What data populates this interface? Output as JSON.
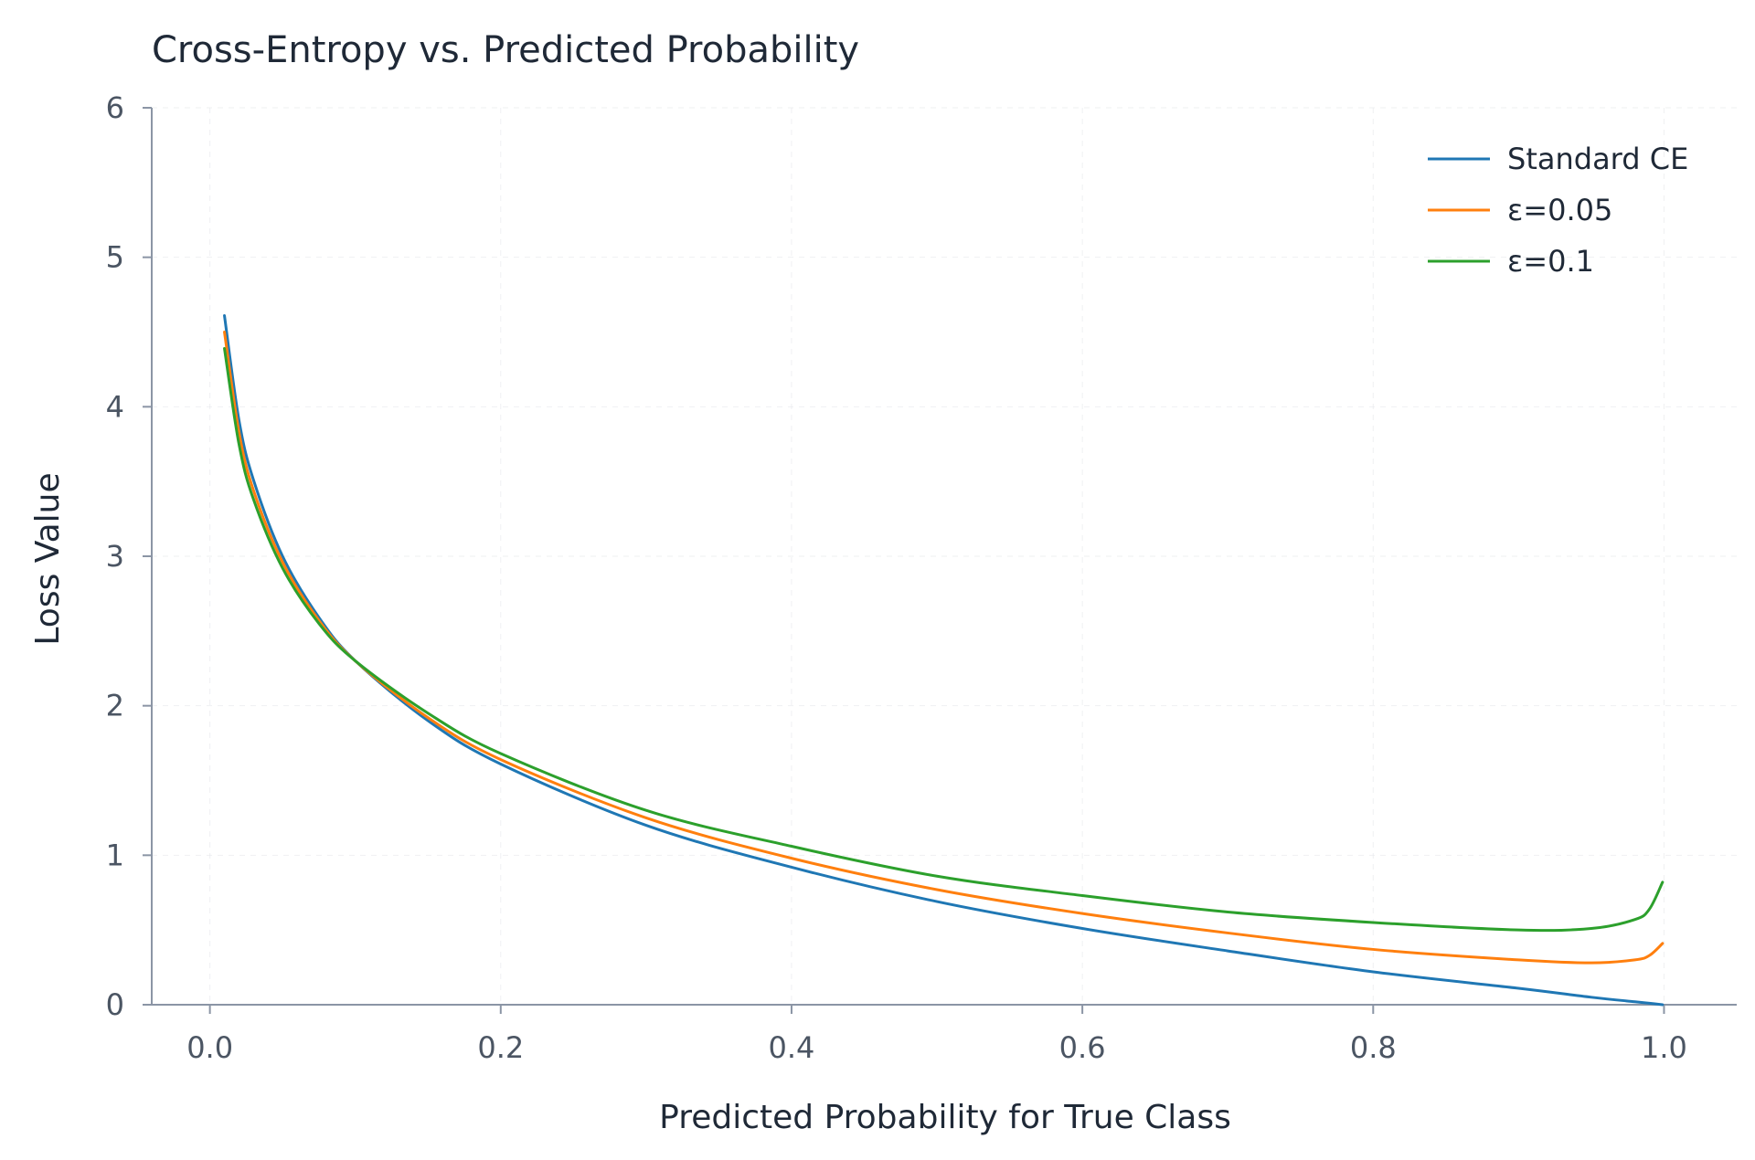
{
  "chart_data": {
    "type": "line",
    "title": "Cross-Entropy vs. Predicted Probability",
    "xlabel": "Predicted Probability for True Class",
    "ylabel": "Loss Value",
    "xlim": [
      -0.04,
      1.05
    ],
    "ylim": [
      0,
      6
    ],
    "xticks": [
      "0.0",
      "0.2",
      "0.4",
      "0.6",
      "0.8",
      "1.0"
    ],
    "yticks": [
      "0",
      "1",
      "2",
      "3",
      "4",
      "5",
      "6"
    ],
    "grid": true,
    "legend_position": "top-right",
    "x": [
      0.01,
      0.02,
      0.03,
      0.05,
      0.075,
      0.1,
      0.15,
      0.2,
      0.3,
      0.4,
      0.5,
      0.6,
      0.7,
      0.8,
      0.9,
      0.95,
      0.98,
      0.99,
      0.999
    ],
    "series": [
      {
        "name": "Standard CE",
        "color": "#1f77b4",
        "values": [
          4.61,
          3.91,
          3.51,
          3.0,
          2.59,
          2.3,
          1.9,
          1.61,
          1.2,
          0.92,
          0.69,
          0.51,
          0.36,
          0.22,
          0.11,
          0.05,
          0.02,
          0.01,
          0.0
        ]
      },
      {
        "name": "ε=0.05",
        "color": "#ff7f0e",
        "values": [
          4.5,
          3.83,
          3.44,
          2.96,
          2.57,
          2.3,
          1.92,
          1.64,
          1.25,
          0.98,
          0.77,
          0.61,
          0.48,
          0.37,
          0.3,
          0.28,
          0.3,
          0.33,
          0.41
        ]
      },
      {
        "name": "ε=0.1",
        "color": "#2ca02c",
        "values": [
          4.39,
          3.75,
          3.38,
          2.92,
          2.55,
          2.3,
          1.95,
          1.68,
          1.3,
          1.06,
          0.86,
          0.73,
          0.62,
          0.55,
          0.5,
          0.51,
          0.57,
          0.64,
          0.82
        ]
      }
    ]
  }
}
